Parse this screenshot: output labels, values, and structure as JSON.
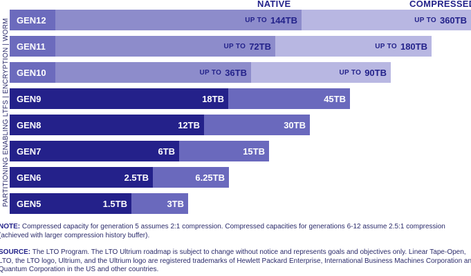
{
  "header": {
    "native": "NATIVE",
    "compressed": "COMPRESSED"
  },
  "side_label": "PARTITIONING ENABLING LTFS | ENCRYPTION | WORM",
  "chart_data": {
    "type": "bar",
    "stacked": false,
    "categories": [
      "GEN12",
      "GEN11",
      "GEN10",
      "GEN9",
      "GEN8",
      "GEN7",
      "GEN6",
      "GEN5"
    ],
    "series": [
      {
        "name": "NATIVE",
        "values": [
          144,
          72,
          36,
          18,
          12,
          6,
          2.5,
          1.5
        ],
        "labels": [
          "144TB",
          "72TB",
          "36TB",
          "18TB",
          "12TB",
          "6TB",
          "2.5TB",
          "1.5TB"
        ],
        "prefix": [
          "UP TO",
          "UP TO",
          "UP TO",
          "",
          "",
          "",
          "",
          ""
        ]
      },
      {
        "name": "COMPRESSED",
        "values": [
          360,
          180,
          90,
          45,
          30,
          15,
          6.25,
          3
        ],
        "labels": [
          "360TB",
          "180TB",
          "90TB",
          "45TB",
          "30TB",
          "15TB",
          "6.25TB",
          "3TB"
        ],
        "prefix": [
          "UP TO",
          "UP TO",
          "UP TO",
          "",
          "",
          "",
          "",
          ""
        ]
      }
    ],
    "legend": "top",
    "grid": false,
    "colors": {
      "label_light": "#6c6bbd",
      "label_dark": "#24218a",
      "native_light": "#8d8ccb",
      "native_dark": "#24218a",
      "comp_light": "#b8b7e2",
      "comp_dark": "#6a69bd"
    }
  },
  "notes": {
    "note_label": "NOTE:",
    "note_text": "Compressed capacity for generation 5 assumes 2:1 compression. Compressed capacities for generations 6-12 assume 2.5:1 compression (achieved with larger compression history buffer).",
    "source_label": "SOURCE:",
    "source_text": "The LTO Program. The LTO Ultrium roadmap is subject to change without notice and represents goals and objectives only. Linear Tape-Open, LTO, the LTO logo, Ultrium, and the Ultrium logo are registered trademarks of Hewlett Packard Enterprise, International Business Machines Corporation and Quantum Corporation in the US and other countries."
  }
}
